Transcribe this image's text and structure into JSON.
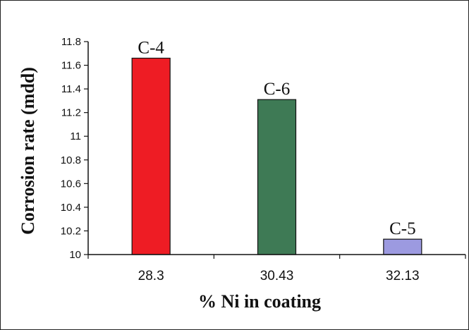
{
  "chart_data": {
    "type": "bar",
    "categories": [
      "28.3",
      "30.43",
      "32.13"
    ],
    "values": [
      11.66,
      11.31,
      10.13
    ],
    "data_labels": [
      "C-4",
      "C-6",
      "C-5"
    ],
    "colors": [
      "#ee1c24",
      "#3e7a55",
      "#9c9ae0"
    ],
    "xlabel": "% Ni in coating",
    "ylabel": "Corrosion rate (mdd)",
    "ylim": [
      10,
      11.8
    ],
    "yticks": [
      "10",
      "10.2",
      "10.4",
      "10.6",
      "10.8",
      "11",
      "11.2",
      "11.4",
      "11.6",
      "11.8"
    ],
    "grid": false,
    "legend": "none"
  }
}
